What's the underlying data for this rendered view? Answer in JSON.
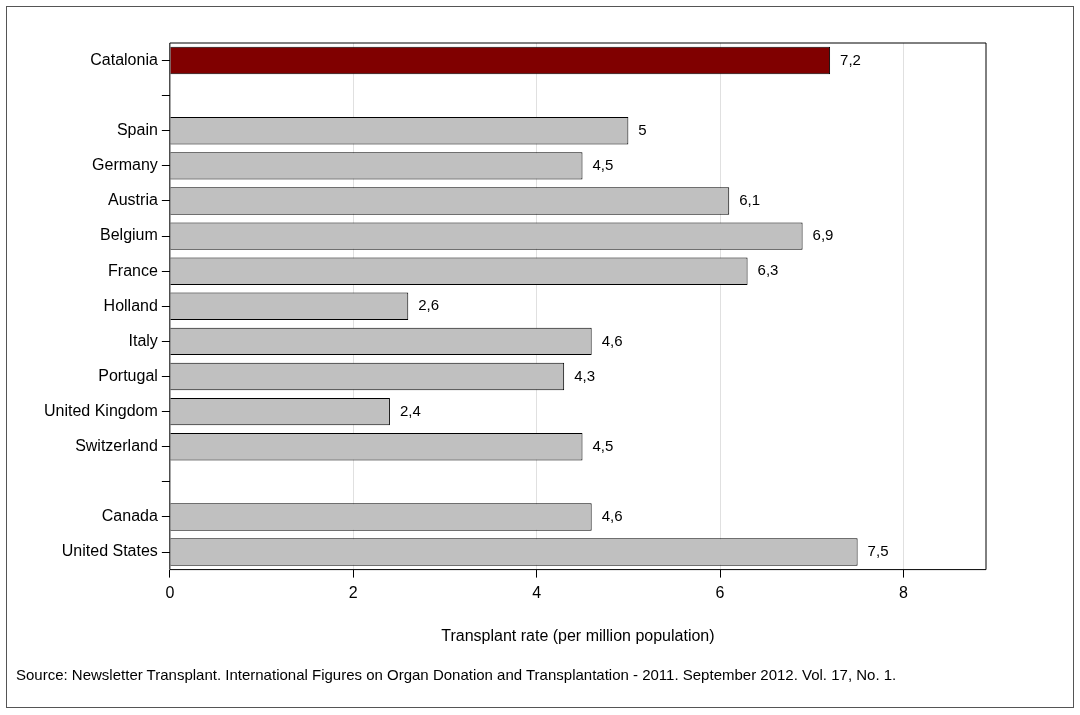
{
  "chart_data": {
    "type": "bar",
    "orientation": "horizontal",
    "xlabel": "Transplant rate (per million population)",
    "categories": [
      "Catalonia",
      null,
      "Spain",
      "Germany",
      "Austria",
      "Belgium",
      "France",
      "Holland",
      "Italy",
      "Portugal",
      "United Kingdom",
      "Switzerland",
      null,
      "Canada",
      "United States"
    ],
    "values": [
      7.2,
      null,
      5,
      4.5,
      6.1,
      6.9,
      6.3,
      2.6,
      4.6,
      4.3,
      2.4,
      4.5,
      null,
      4.6,
      7.5
    ],
    "colors": [
      "#800000",
      null,
      "#c0c0c0",
      "#c0c0c0",
      "#c0c0c0",
      "#c0c0c0",
      "#c0c0c0",
      "#c0c0c0",
      "#c0c0c0",
      "#c0c0c0",
      "#c0c0c0",
      "#c0c0c0",
      null,
      "#c0c0c0",
      "#c0c0c0"
    ],
    "value_labels": [
      "7,2",
      null,
      "5",
      "4,5",
      "6,1",
      "6,9",
      "6,3",
      "2,6",
      "4,6",
      "4,3",
      "2,4",
      "4,5",
      null,
      "4,6",
      "7,5"
    ],
    "xlim": [
      0,
      8.9
    ],
    "xticks": [
      0,
      2,
      4,
      6,
      8
    ],
    "grid": "x",
    "annotations": [
      "Source: Newsletter Transplant. International Figures on Organ Donation and Transplantation - 2011. September 2012. Vol. 17, No. 1."
    ]
  }
}
